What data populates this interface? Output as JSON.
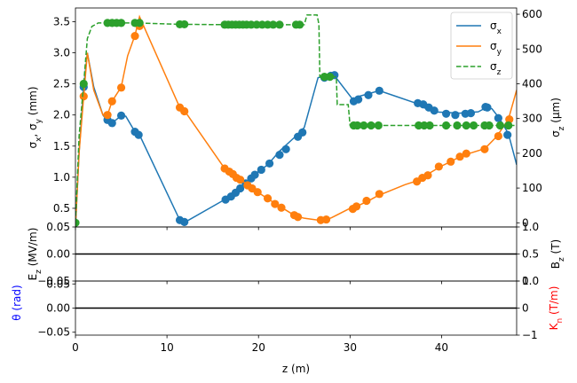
{
  "chart_data": [
    {
      "panel": "beam-sizes",
      "type": "line",
      "xlim": [
        0,
        48.2
      ],
      "ylim": [
        0.2,
        3.72
      ],
      "y2lim": [
        -12,
        618
      ],
      "ylabel_parts": [
        "σ",
        "x",
        ", σ",
        "y",
        " (mm)"
      ],
      "y2label_parts": [
        "σ",
        "z",
        " (μm)"
      ],
      "yticks": [
        "0.5",
        "1.0",
        "1.5",
        "2.0",
        "2.5",
        "3.0",
        "3.5"
      ],
      "y2ticks": [
        "0",
        "100",
        "200",
        "300",
        "400",
        "500",
        "600"
      ],
      "legend": {
        "position": "top-right",
        "entries": [
          {
            "sym": "σ",
            "sub": "x"
          },
          {
            "sym": "σ",
            "sub": "y"
          },
          {
            "sym": "σ",
            "sub": "z"
          }
        ]
      },
      "series": [
        {
          "color": "#1f77b4",
          "style": "solid",
          "axis": "left",
          "line": [
            [
              0,
              0.2
            ],
            [
              0.4,
              1.4
            ],
            [
              0.9,
              2.45
            ],
            [
              1.3,
              3.0
            ],
            [
              2.0,
              2.45
            ],
            [
              3.0,
              2.0
            ],
            [
              3.5,
              1.9
            ],
            [
              4.0,
              1.87
            ],
            [
              5.0,
              1.99
            ],
            [
              5.5,
              1.98
            ],
            [
              6.5,
              1.73
            ],
            [
              7.0,
              1.68
            ],
            [
              11.4,
              0.31
            ],
            [
              12.0,
              0.28
            ],
            [
              16.3,
              0.64
            ],
            [
              17.0,
              0.69
            ],
            [
              18.0,
              0.82
            ],
            [
              19.0,
              0.98
            ],
            [
              21.0,
              1.2
            ],
            [
              22.3,
              1.42
            ],
            [
              24.0,
              1.65
            ],
            [
              25.0,
              1.8
            ],
            [
              26.5,
              2.6
            ],
            [
              27.5,
              2.63
            ],
            [
              28.2,
              2.65
            ],
            [
              30.3,
              2.25
            ],
            [
              31.0,
              2.3
            ],
            [
              33.2,
              2.39
            ],
            [
              35.0,
              2.3
            ],
            [
              37.0,
              2.2
            ],
            [
              39.0,
              2.05
            ],
            [
              42.0,
              2.03
            ],
            [
              44.0,
              2.05
            ],
            [
              44.9,
              2.12
            ],
            [
              45.5,
              2.1
            ],
            [
              46.3,
              1.95
            ],
            [
              47.3,
              1.7
            ],
            [
              48.2,
              1.2
            ]
          ],
          "markers": [
            [
              0.9,
              2.45
            ],
            [
              3.5,
              1.92
            ],
            [
              4.0,
              1.87
            ],
            [
              5.0,
              1.99
            ],
            [
              6.5,
              1.73
            ],
            [
              6.9,
              1.68
            ],
            [
              11.4,
              0.31
            ],
            [
              11.9,
              0.28
            ],
            [
              16.4,
              0.64
            ],
            [
              17.0,
              0.69
            ],
            [
              17.5,
              0.75
            ],
            [
              18.0,
              0.82
            ],
            [
              18.6,
              0.9
            ],
            [
              19.2,
              0.98
            ],
            [
              19.6,
              1.04
            ],
            [
              20.3,
              1.12
            ],
            [
              21.2,
              1.22
            ],
            [
              22.3,
              1.36
            ],
            [
              23.0,
              1.45
            ],
            [
              24.3,
              1.65
            ],
            [
              24.8,
              1.72
            ],
            [
              27.2,
              2.6
            ],
            [
              27.9,
              2.63
            ],
            [
              28.3,
              2.64
            ],
            [
              30.4,
              2.22
            ],
            [
              30.9,
              2.25
            ],
            [
              32.0,
              2.32
            ],
            [
              33.2,
              2.39
            ],
            [
              37.4,
              2.19
            ],
            [
              38.0,
              2.17
            ],
            [
              38.6,
              2.12
            ],
            [
              39.2,
              2.07
            ],
            [
              40.5,
              2.02
            ],
            [
              41.5,
              2.0
            ],
            [
              42.6,
              2.02
            ],
            [
              43.2,
              2.03
            ],
            [
              44.8,
              2.13
            ],
            [
              45.0,
              2.12
            ],
            [
              46.2,
              1.95
            ],
            [
              47.2,
              1.68
            ]
          ]
        },
        {
          "color": "#ff7f0e",
          "style": "solid",
          "axis": "left",
          "line": [
            [
              0,
              0.2
            ],
            [
              0.4,
              1.4
            ],
            [
              0.9,
              2.3
            ],
            [
              1.3,
              3.0
            ],
            [
              2.0,
              2.4
            ],
            [
              3.0,
              2.0
            ],
            [
              3.5,
              2.0
            ],
            [
              4.0,
              2.22
            ],
            [
              5.0,
              2.45
            ],
            [
              5.7,
              2.95
            ],
            [
              6.5,
              3.28
            ],
            [
              7.0,
              3.58
            ],
            [
              11.4,
              2.12
            ],
            [
              12.0,
              2.05
            ],
            [
              16.3,
              1.14
            ],
            [
              17.0,
              1.07
            ],
            [
              18.0,
              0.96
            ],
            [
              19.0,
              0.86
            ],
            [
              20.0,
              0.75
            ],
            [
              22.0,
              0.56
            ],
            [
              23.0,
              0.47
            ],
            [
              24.0,
              0.38
            ],
            [
              25.0,
              0.34
            ],
            [
              27.0,
              0.3
            ],
            [
              27.5,
              0.32
            ],
            [
              28.0,
              0.35
            ],
            [
              30.0,
              0.5
            ],
            [
              31.0,
              0.55
            ],
            [
              32.0,
              0.62
            ],
            [
              33.0,
              0.7
            ],
            [
              36.0,
              0.88
            ],
            [
              37.5,
              0.95
            ],
            [
              38.5,
              1.05
            ],
            [
              40.0,
              1.18
            ],
            [
              41.0,
              1.25
            ],
            [
              42.0,
              1.33
            ],
            [
              43.0,
              1.38
            ],
            [
              44.5,
              1.45
            ],
            [
              45.0,
              1.5
            ],
            [
              46.0,
              1.65
            ],
            [
              47.3,
              1.93
            ],
            [
              48.2,
              2.4
            ]
          ],
          "markers": [
            [
              0.9,
              2.3
            ],
            [
              3.5,
              2.0
            ],
            [
              4.0,
              2.22
            ],
            [
              5.0,
              2.44
            ],
            [
              6.5,
              3.27
            ],
            [
              7.0,
              3.43
            ],
            [
              11.4,
              2.12
            ],
            [
              11.9,
              2.06
            ],
            [
              16.3,
              1.14
            ],
            [
              16.8,
              1.09
            ],
            [
              17.2,
              1.05
            ],
            [
              17.6,
              0.99
            ],
            [
              18.0,
              0.96
            ],
            [
              18.8,
              0.87
            ],
            [
              19.3,
              0.82
            ],
            [
              19.9,
              0.76
            ],
            [
              21.0,
              0.66
            ],
            [
              21.8,
              0.57
            ],
            [
              22.5,
              0.51
            ],
            [
              23.9,
              0.39
            ],
            [
              24.3,
              0.36
            ],
            [
              26.8,
              0.31
            ],
            [
              27.4,
              0.32
            ],
            [
              30.3,
              0.49
            ],
            [
              30.7,
              0.53
            ],
            [
              31.8,
              0.62
            ],
            [
              33.2,
              0.73
            ],
            [
              37.3,
              0.93
            ],
            [
              37.9,
              0.99
            ],
            [
              38.5,
              1.03
            ],
            [
              39.7,
              1.17
            ],
            [
              41.0,
              1.25
            ],
            [
              42.0,
              1.33
            ],
            [
              42.7,
              1.38
            ],
            [
              44.7,
              1.45
            ],
            [
              46.2,
              1.66
            ],
            [
              47.4,
              1.93
            ]
          ]
        },
        {
          "color": "#2ca02c",
          "style": "dashed",
          "axis": "right",
          "line": [
            [
              0,
              0
            ],
            [
              0.4,
              250
            ],
            [
              0.9,
              400
            ],
            [
              1.3,
              530
            ],
            [
              1.8,
              565
            ],
            [
              2.5,
              575
            ],
            [
              3.5,
              575
            ],
            [
              6.5,
              575
            ],
            [
              11.5,
              571
            ],
            [
              16.0,
              570
            ],
            [
              24.0,
              570
            ],
            [
              25.0,
              570
            ],
            [
              25.3,
              598
            ],
            [
              26.4,
              598
            ],
            [
              26.6,
              570
            ],
            [
              26.7,
              420
            ],
            [
              28.5,
              420
            ],
            [
              28.6,
              340
            ],
            [
              29.8,
              340
            ],
            [
              30.0,
              280
            ],
            [
              48.2,
              280
            ]
          ],
          "markers": [
            [
              0,
              0
            ],
            [
              0.9,
              400
            ],
            [
              3.5,
              575
            ],
            [
              4.0,
              575
            ],
            [
              4.5,
              575
            ],
            [
              5.0,
              575
            ],
            [
              6.5,
              575
            ],
            [
              7.0,
              575
            ],
            [
              11.4,
              571
            ],
            [
              11.9,
              571
            ],
            [
              16.3,
              570
            ],
            [
              16.7,
              570
            ],
            [
              17.1,
              570
            ],
            [
              17.5,
              570
            ],
            [
              17.9,
              570
            ],
            [
              18.3,
              570
            ],
            [
              18.7,
              570
            ],
            [
              19.2,
              570
            ],
            [
              19.8,
              570
            ],
            [
              20.4,
              570
            ],
            [
              21.0,
              570
            ],
            [
              21.6,
              570
            ],
            [
              22.3,
              570
            ],
            [
              24.1,
              570
            ],
            [
              24.5,
              570
            ],
            [
              27.2,
              420
            ],
            [
              27.8,
              420
            ],
            [
              30.4,
              280
            ],
            [
              30.8,
              280
            ],
            [
              31.5,
              280
            ],
            [
              32.3,
              280
            ],
            [
              33.1,
              280
            ],
            [
              37.5,
              280
            ],
            [
              38.1,
              280
            ],
            [
              38.7,
              280
            ],
            [
              40.5,
              280
            ],
            [
              41.7,
              280
            ],
            [
              42.7,
              280
            ],
            [
              43.5,
              280
            ],
            [
              44.7,
              280
            ],
            [
              45.2,
              280
            ],
            [
              46.4,
              280
            ],
            [
              47.3,
              280
            ]
          ]
        }
      ]
    },
    {
      "panel": "field-Ez-Bz",
      "type": "line",
      "xlim": [
        0,
        48.2
      ],
      "ylim": [
        -0.05,
        0.05
      ],
      "y2lim": [
        0,
        1
      ],
      "ylabel_parts": [
        "E",
        "z",
        " (MV/m)"
      ],
      "y2label_parts": [
        "B",
        "z",
        " (T)"
      ],
      "yticks": [
        "−0.05",
        "0.00",
        "0.05"
      ],
      "y2ticks": [
        "0.0",
        "0.5",
        "1.0"
      ],
      "series": [
        {
          "color": "#000000",
          "line": [
            [
              0,
              0
            ],
            [
              48.2,
              0
            ]
          ]
        }
      ]
    },
    {
      "panel": "theta-kn",
      "type": "line",
      "xlim": [
        0,
        48.2
      ],
      "xlabel": "z (m)",
      "xticks": [
        "0",
        "10",
        "20",
        "30",
        "40"
      ],
      "ylim": [
        -0.056,
        0.056
      ],
      "y2lim": [
        -1,
        1
      ],
      "ylabel": "θ (rad)",
      "ylabel_color": "#0000ff",
      "y2label_parts": [
        "K",
        "n",
        " (T/m)"
      ],
      "y2label_color": "#ff0000",
      "yticks": [
        "−0.05",
        "0.00",
        "0.05"
      ],
      "y2ticks": [
        "−1",
        "0",
        "1"
      ],
      "series": [
        {
          "color": "#000000",
          "line": [
            [
              0,
              0
            ],
            [
              48.2,
              0
            ]
          ]
        }
      ]
    }
  ]
}
